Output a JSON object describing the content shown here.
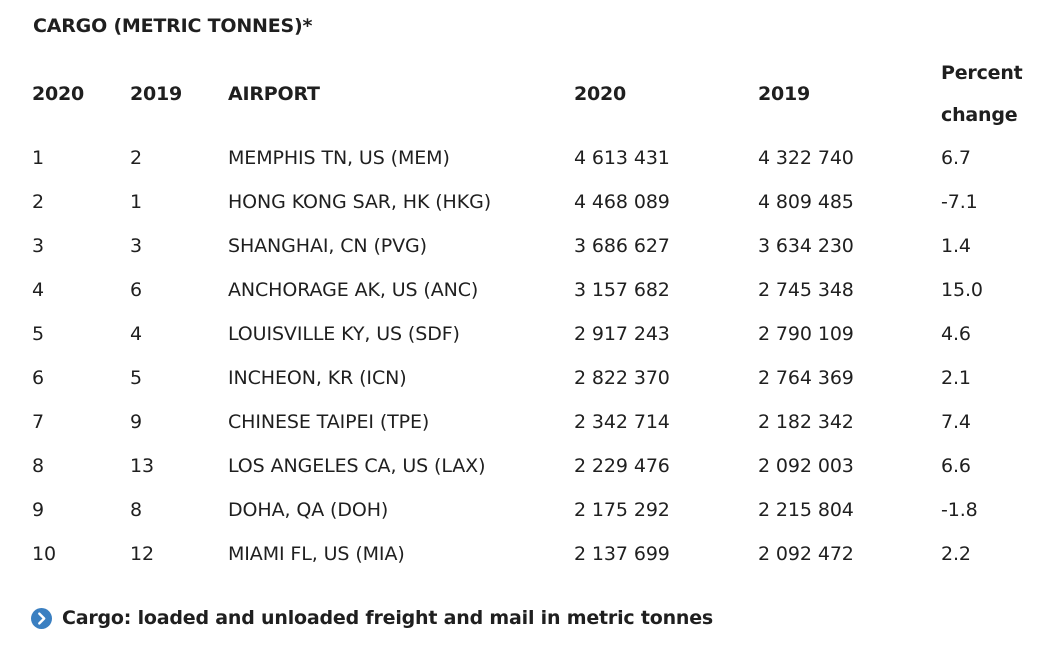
{
  "title": "CARGO (METRIC TONNES)*",
  "columns": [
    "2020",
    "2019",
    "AIRPORT",
    "2020",
    "2019",
    "Percent change"
  ],
  "rows": [
    [
      "1",
      "2",
      "MEMPHIS TN, US (MEM)",
      "4 613 431",
      "4 322 740",
      "6.7"
    ],
    [
      "2",
      "1",
      "HONG KONG SAR, HK (HKG)",
      "4 468 089",
      "4 809 485",
      "-7.1"
    ],
    [
      "3",
      "3",
      "SHANGHAI, CN (PVG)",
      "3 686 627",
      "3 634 230",
      "1.4"
    ],
    [
      "4",
      "6",
      "ANCHORAGE AK, US (ANC)",
      "3 157 682",
      "2 745 348",
      "15.0"
    ],
    [
      "5",
      "4",
      "LOUISVILLE KY, US (SDF)",
      "2 917 243",
      "2 790 109",
      "4.6"
    ],
    [
      "6",
      "5",
      "INCHEON, KR (ICN)",
      "2 822 370",
      "2 764 369",
      "2.1"
    ],
    [
      "7",
      "9",
      "CHINESE TAIPEI (TPE)",
      "2 342 714",
      "2 182 342",
      "7.4"
    ],
    [
      "8",
      "13",
      "LOS ANGELES CA, US (LAX)",
      "2 229 476",
      "2 092 003",
      "6.6"
    ],
    [
      "9",
      "8",
      "DOHA, QA (DOH)",
      "2 175 292",
      "2 215 804",
      "-1.8"
    ],
    [
      "10",
      "12",
      "MIAMI FL, US (MIA)",
      "2 137 699",
      "2 092 472",
      "2.2"
    ]
  ],
  "footnote": {
    "icon": "chevron-right-circle-icon",
    "text": "Cargo: loaded and unloaded freight and mail in metric tonnes",
    "icon_color": "#3a7fc1"
  }
}
